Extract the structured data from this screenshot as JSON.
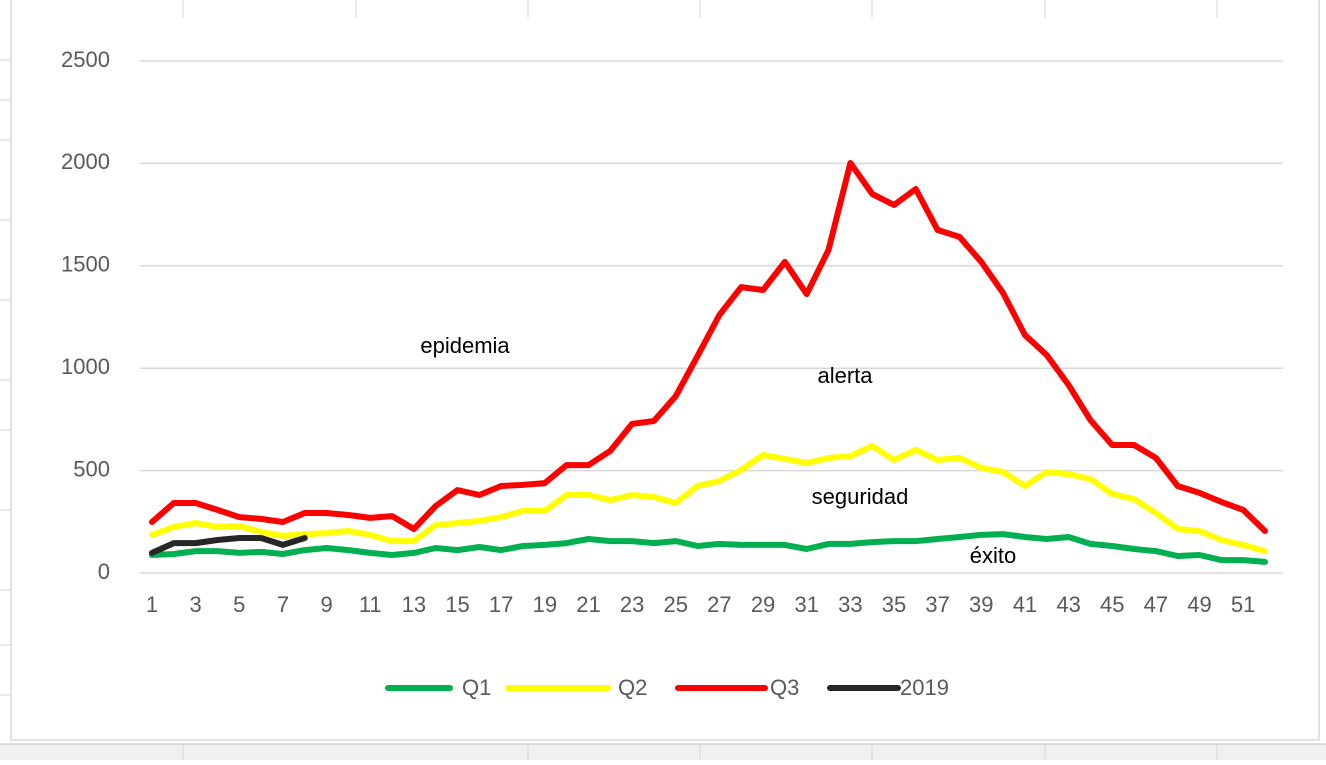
{
  "chart_data": {
    "type": "line",
    "x": [
      1,
      2,
      3,
      4,
      5,
      6,
      7,
      8,
      9,
      10,
      11,
      12,
      13,
      14,
      15,
      16,
      17,
      18,
      19,
      20,
      21,
      22,
      23,
      24,
      25,
      26,
      27,
      28,
      29,
      30,
      31,
      32,
      33,
      34,
      35,
      36,
      37,
      38,
      39,
      40,
      41,
      42,
      43,
      44,
      45,
      46,
      47,
      48,
      49,
      50,
      51,
      52
    ],
    "xlim": [
      1,
      52
    ],
    "xticks": [
      1,
      3,
      5,
      7,
      9,
      11,
      13,
      15,
      17,
      19,
      21,
      23,
      25,
      27,
      29,
      31,
      33,
      35,
      37,
      39,
      41,
      43,
      45,
      47,
      49,
      51
    ],
    "ylim": [
      0,
      2500
    ],
    "yticks": [
      0,
      500,
      1000,
      1500,
      2000,
      2500
    ],
    "grid": true,
    "legend": "bottom",
    "annotations": [
      "epidemia",
      "alerta",
      "seguridad",
      "éxito"
    ],
    "series": [
      {
        "name": "Q1",
        "color": "#00b050",
        "values": [
          88,
          93,
          107,
          107,
          98,
          103,
          93,
          112,
          122,
          112,
          98,
          88,
          98,
          122,
          112,
          127,
          112,
          132,
          137,
          146,
          166,
          156,
          156,
          146,
          156,
          132,
          142,
          137,
          137,
          137,
          117,
          142,
          142,
          151,
          156,
          156,
          166,
          176,
          186,
          190,
          176,
          166,
          176,
          142,
          132,
          117,
          107,
          83,
          88,
          63,
          63,
          54
        ]
      },
      {
        "name": "Q2",
        "color": "#ffff00",
        "values": [
          186,
          225,
          244,
          225,
          229,
          200,
          181,
          190,
          195,
          205,
          186,
          156,
          156,
          234,
          244,
          254,
          273,
          303,
          303,
          381,
          381,
          356,
          381,
          371,
          342,
          425,
          449,
          503,
          576,
          557,
          537,
          562,
          571,
          620,
          552,
          601,
          552,
          562,
          513,
          493,
          425,
          493,
          483,
          459,
          386,
          361,
          293,
          215,
          205,
          161,
          137,
          107
        ]
      },
      {
        "name": "Q3",
        "color": "#ff0000",
        "values": [
          249,
          342,
          342,
          308,
          273,
          264,
          249,
          293,
          293,
          283,
          269,
          278,
          215,
          327,
          405,
          381,
          425,
          430,
          439,
          527,
          527,
          596,
          728,
          742,
          864,
          1060,
          1260,
          1396,
          1382,
          1519,
          1362,
          1577,
          2002,
          1851,
          1797,
          1875,
          1675,
          1641,
          1519,
          1367,
          1162,
          1064,
          918,
          747,
          625,
          625,
          562,
          425,
          391,
          347,
          308,
          205
        ]
      },
      {
        "name": "2019",
        "color": "#262626",
        "values": [
          98,
          146,
          146,
          161,
          171,
          171,
          137,
          171,
          null,
          null,
          null,
          null,
          null,
          null,
          null,
          null,
          null,
          null,
          null,
          null,
          null,
          null,
          null,
          null,
          null,
          null,
          null,
          null,
          null,
          null,
          null,
          null,
          null,
          null,
          null,
          null,
          null,
          null,
          null,
          null,
          null,
          null,
          null,
          null,
          null,
          null,
          null,
          null,
          null,
          null,
          null,
          null
        ]
      }
    ]
  }
}
